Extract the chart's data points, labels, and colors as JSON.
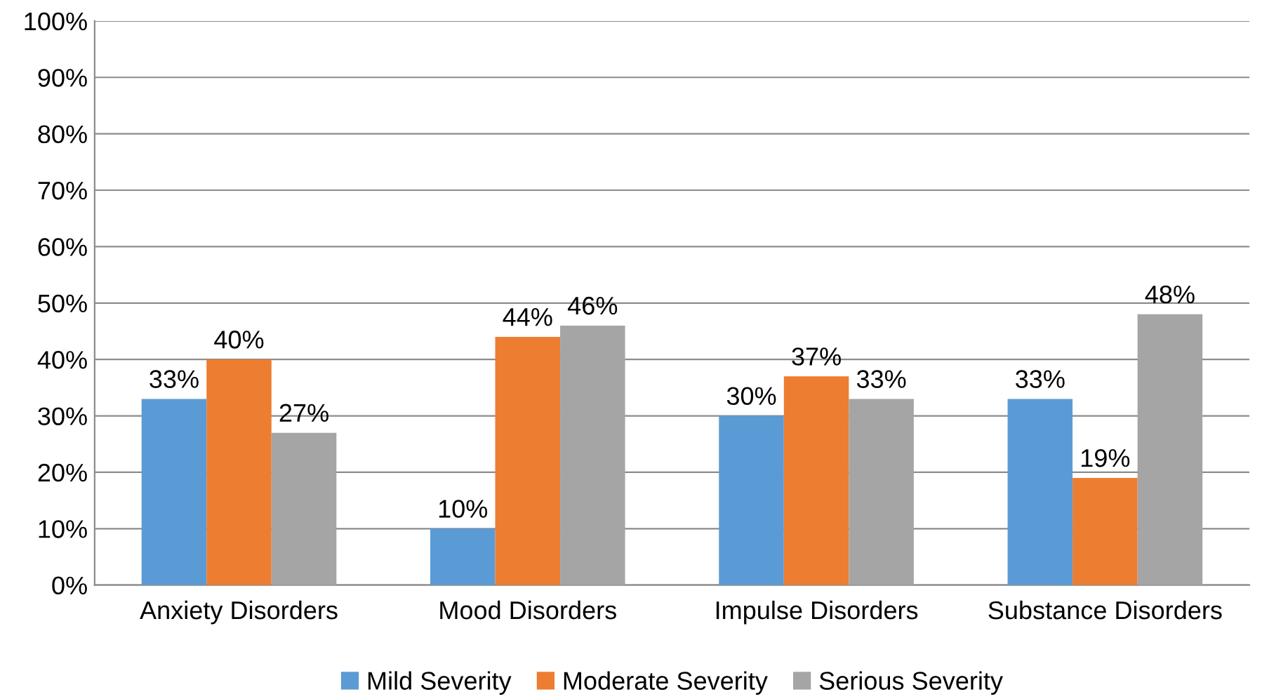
{
  "chart_data": {
    "type": "bar",
    "categories": [
      "Anxiety Disorders",
      "Mood Disorders",
      "Impulse Disorders",
      "Substance Disorders"
    ],
    "series": [
      {
        "name": "Mild Severity",
        "color": "#5b9bd5",
        "values": [
          33,
          10,
          30,
          33
        ],
        "value_labels": [
          "33%",
          "10%",
          "30%",
          "33%"
        ]
      },
      {
        "name": "Moderate Severity",
        "color": "#ed7d31",
        "values": [
          40,
          44,
          37,
          19
        ],
        "value_labels": [
          "40%",
          "44%",
          "37%",
          "19%"
        ]
      },
      {
        "name": "Serious Severity",
        "color": "#a5a5a5",
        "values": [
          27,
          46,
          33,
          48
        ],
        "value_labels": [
          "27%",
          "46%",
          "33%",
          "48%"
        ]
      }
    ],
    "ylim": [
      0,
      100
    ],
    "yticks": [
      {
        "value": 0,
        "label": "0%"
      },
      {
        "value": 10,
        "label": "10%"
      },
      {
        "value": 20,
        "label": "20%"
      },
      {
        "value": 30,
        "label": "30%"
      },
      {
        "value": 40,
        "label": "40%"
      },
      {
        "value": 50,
        "label": "50%"
      },
      {
        "value": 60,
        "label": "60%"
      },
      {
        "value": 70,
        "label": "70%"
      },
      {
        "value": 80,
        "label": "80%"
      },
      {
        "value": 90,
        "label": "90%"
      },
      {
        "value": 100,
        "label": "100%"
      }
    ],
    "grid": "y",
    "legend": "bottom"
  }
}
